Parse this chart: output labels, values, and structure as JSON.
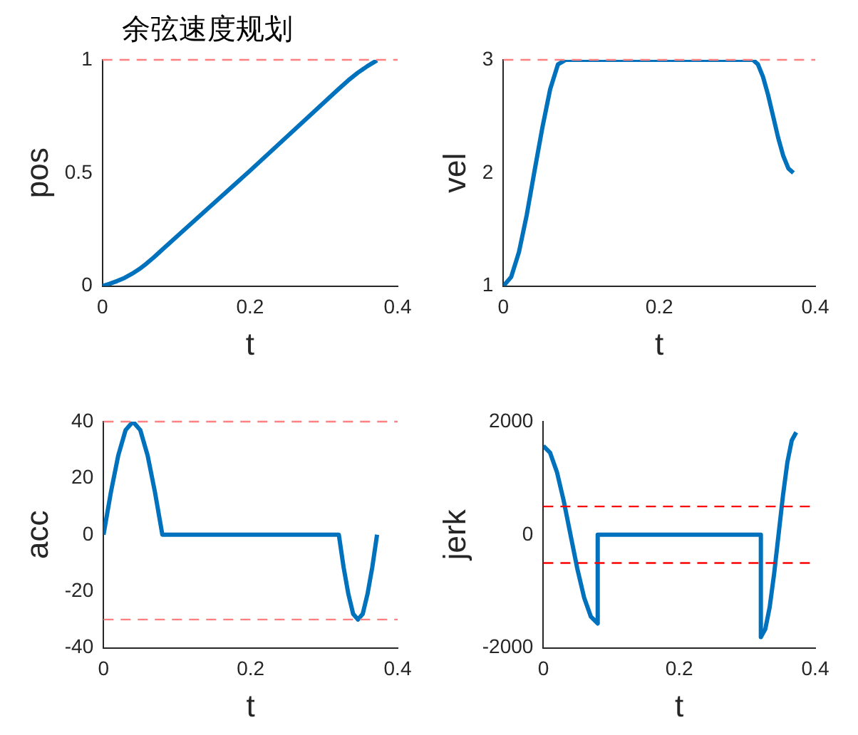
{
  "chart_data": [
    {
      "type": "line",
      "title": "余弦速度规划",
      "xlabel": "t",
      "ylabel": "pos",
      "color": "#0072bd",
      "line_style": "solid",
      "grid": false,
      "legend": false,
      "x": [
        0,
        0.01,
        0.02,
        0.03,
        0.04,
        0.05,
        0.06,
        0.07,
        0.08,
        0.2,
        0.32,
        0.333,
        0.346,
        0.359,
        0.372
      ],
      "values": [
        0,
        0.01,
        0.022,
        0.036,
        0.054,
        0.075,
        0.1,
        0.128,
        0.158,
        0.51,
        0.871,
        0.909,
        0.943,
        0.972,
        0.998
      ],
      "xlim": [
        0,
        0.4
      ],
      "xticks": [
        0,
        0.2,
        0.4
      ],
      "ylim": [
        0,
        1
      ],
      "yticks": [
        0,
        0.5,
        1
      ],
      "ref_lines": [
        {
          "axis": "y",
          "value": 1,
          "color": "#ff8080",
          "line_style": "dashed"
        }
      ]
    },
    {
      "type": "line",
      "xlabel": "t",
      "ylabel": "vel",
      "color": "#0072bd",
      "line_style": "solid",
      "grid": false,
      "legend": false,
      "x": [
        0,
        0.01,
        0.02,
        0.03,
        0.04,
        0.05,
        0.06,
        0.07,
        0.08,
        0.32,
        0.3265,
        0.333,
        0.3395,
        0.346,
        0.3525,
        0.359,
        0.3655,
        0.372
      ],
      "values": [
        1,
        1.08,
        1.3,
        1.63,
        2.02,
        2.4,
        2.74,
        2.96,
        3,
        3,
        2.96,
        2.85,
        2.69,
        2.5,
        2.31,
        2.15,
        2.04,
        2
      ],
      "xlim": [
        0,
        0.4
      ],
      "xticks": [
        0,
        0.2,
        0.4
      ],
      "ylim": [
        1,
        3
      ],
      "yticks": [
        1,
        2,
        3
      ],
      "ref_lines": [
        {
          "axis": "y",
          "value": 3,
          "color": "#ff8080",
          "line_style": "dashed"
        }
      ]
    },
    {
      "type": "line",
      "xlabel": "t",
      "ylabel": "acc",
      "color": "#0072bd",
      "line_style": "solid",
      "grid": false,
      "legend": false,
      "x": [
        0,
        0.01,
        0.02,
        0.03,
        0.04,
        0.05,
        0.06,
        0.07,
        0.08,
        0.32,
        0.3265,
        0.333,
        0.3395,
        0.346,
        0.3525,
        0.359,
        0.3655,
        0.372
      ],
      "values": [
        0,
        15,
        28,
        37,
        40,
        37,
        28,
        15,
        0,
        0,
        -11.5,
        -21,
        -28,
        -30,
        -28,
        -21,
        -11.5,
        0
      ],
      "xlim": [
        0,
        0.4
      ],
      "xticks": [
        0,
        0.2,
        0.4
      ],
      "ylim": [
        -40,
        40
      ],
      "yticks": [
        -40,
        -20,
        0,
        20,
        40
      ],
      "ref_lines": [
        {
          "axis": "y",
          "value": 40,
          "color": "#ff8080",
          "line_style": "dashed"
        },
        {
          "axis": "y",
          "value": -30,
          "color": "#ff8080",
          "line_style": "dashed"
        }
      ]
    },
    {
      "type": "line",
      "xlabel": "t",
      "ylabel": "jerk",
      "color": "#0072bd",
      "line_style": "solid",
      "grid": false,
      "legend": false,
      "x": [
        0,
        0.01,
        0.02,
        0.03,
        0.04,
        0.05,
        0.06,
        0.07,
        0.08,
        0.08,
        0.32,
        0.32,
        0.3265,
        0.333,
        0.3395,
        0.346,
        0.3525,
        0.359,
        0.3655,
        0.372
      ],
      "values": [
        1570,
        1450,
        1110,
        600,
        0,
        -600,
        -1110,
        -1450,
        -1570,
        0,
        0,
        -1810,
        -1670,
        -1280,
        -690,
        0,
        690,
        1280,
        1670,
        1810
      ],
      "xlim": [
        0,
        0.4
      ],
      "xticks": [
        0,
        0.2,
        0.4
      ],
      "ylim": [
        -2000,
        2000
      ],
      "yticks": [
        -2000,
        0,
        2000
      ],
      "ref_lines": [
        {
          "axis": "y",
          "value": 500,
          "color": "#ff0000",
          "line_style": "dashed"
        },
        {
          "axis": "y",
          "value": -500,
          "color": "#ff0000",
          "line_style": "dashed"
        }
      ]
    }
  ]
}
